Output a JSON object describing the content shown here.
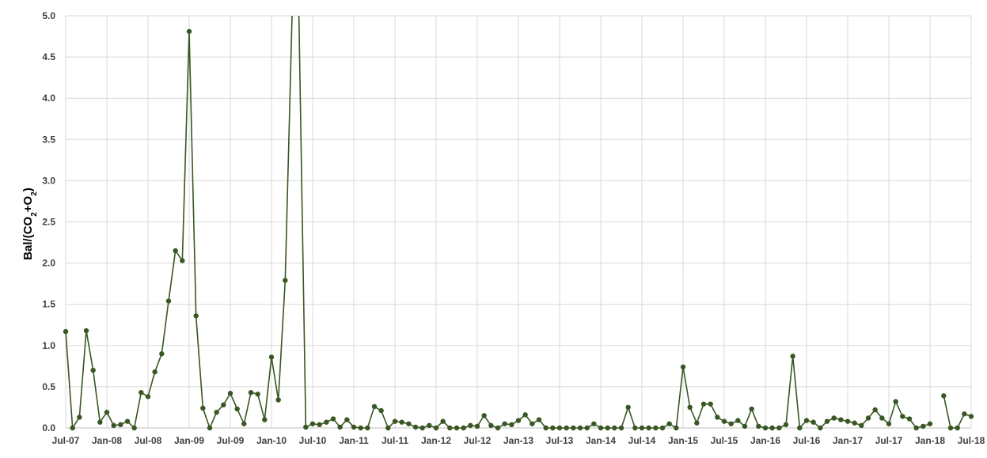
{
  "chart_data": {
    "type": "line",
    "ylabel": "Bal/(CO2+O2)",
    "ylabel_parts": {
      "base": "Bal/(CO",
      "sub1": "2",
      "mid": "+O",
      "sub2": "2",
      "end": ")"
    },
    "ylim": [
      0,
      5.0
    ],
    "y_ticks": [
      "0.0",
      "0.5",
      "1.0",
      "1.5",
      "2.0",
      "2.5",
      "3.0",
      "3.5",
      "4.0",
      "4.5",
      "5.0"
    ],
    "x_ticks": [
      "Jul-07",
      "Jan-08",
      "Jul-08",
      "Jan-09",
      "Jul-09",
      "Jan-10",
      "Jul-10",
      "Jan-11",
      "Jul-11",
      "Jan-12",
      "Jul-12",
      "Jan-13",
      "Jul-13",
      "Jan-14",
      "Jul-14",
      "Jan-15",
      "Jul-15",
      "Jan-16",
      "Jul-16",
      "Jan-17",
      "Jul-17",
      "Jan-18",
      "Jul-18"
    ],
    "x_start": "Jul-07",
    "grid": true,
    "line_color": "#385723",
    "series": [
      {
        "segments": [
          [
            1.17,
            0.0,
            0.13,
            1.18,
            0.7,
            0.07,
            0.19,
            0.03,
            0.04,
            0.08,
            0.0,
            0.43,
            0.38,
            0.68,
            0.9,
            1.54,
            2.15,
            2.03,
            4.81,
            1.36,
            0.24,
            0.0,
            0.19,
            0.28,
            0.42,
            0.23,
            0.05,
            0.43,
            0.41,
            0.1,
            0.86,
            0.34,
            1.79,
            5.0
          ],
          [
            5.0,
            0.01,
            0.05,
            0.04,
            0.07,
            0.11,
            0.01,
            0.1,
            0.01,
            0.0,
            0.0,
            0.26,
            0.21,
            0.0,
            0.08,
            0.07,
            0.05,
            0.01,
            0.0,
            0.03,
            0.0,
            0.08,
            0.0,
            0.0,
            0.0,
            0.03,
            0.02,
            0.15,
            0.03,
            0.0,
            0.05,
            0.04,
            0.09,
            0.16,
            0.05,
            0.1,
            0.0,
            0.0,
            0.0,
            0.0,
            0.0,
            0.0,
            0.0,
            0.05,
            0.0,
            0.0,
            0.0,
            0.0,
            0.25,
            0.0,
            0.0,
            0.0,
            0.0,
            0.0,
            0.05,
            0.0,
            0.74,
            0.25,
            0.06,
            0.29,
            0.29,
            0.13,
            0.08,
            0.05,
            0.09,
            0.02,
            0.23,
            0.02,
            0.0,
            0.0,
            0.0,
            0.04,
            0.87,
            0.0,
            0.09,
            0.07,
            0.0,
            0.08,
            0.12,
            0.1,
            0.08,
            0.06,
            0.03,
            0.12,
            0.22,
            0.12,
            0.05,
            0.32,
            0.14,
            0.11,
            0.0,
            0.02,
            0.05
          ]
        ],
        "tail": [
          0.39,
          0.0,
          0.0,
          0.17,
          0.14
        ]
      }
    ]
  }
}
